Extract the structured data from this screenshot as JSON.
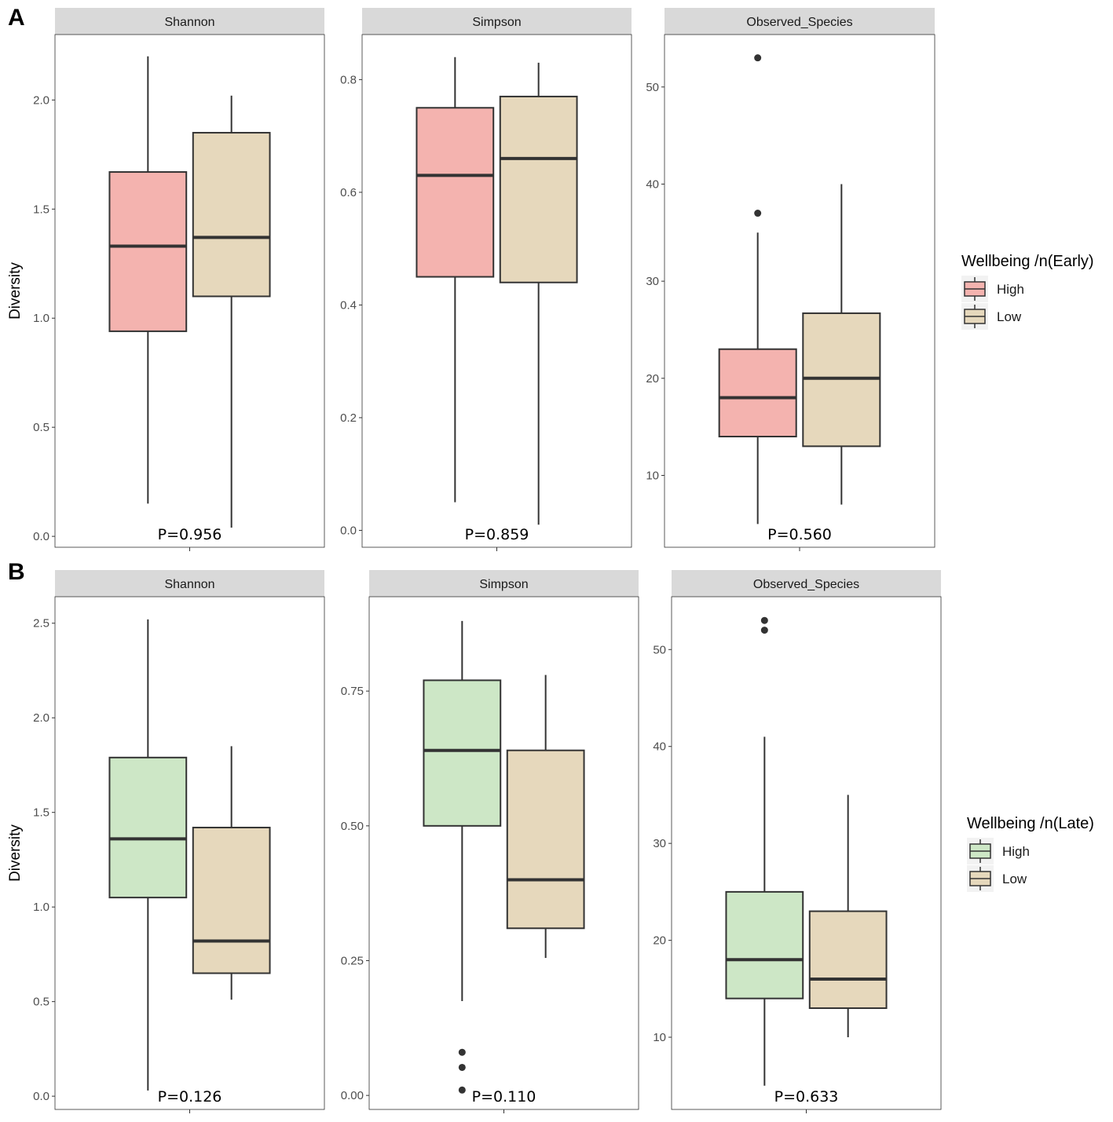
{
  "chart_data": [
    {
      "type": "boxplot",
      "panel": "A",
      "ylabel": "Diversity",
      "legend": {
        "title": "Wellbeing /n(Early)",
        "position": "right",
        "entries": [
          {
            "label": "High",
            "color": "#F4B3AF"
          },
          {
            "label": "Low",
            "color": "#E6D8BC"
          }
        ]
      },
      "facets": [
        {
          "title": "Shannon",
          "ylim": [
            -0.05,
            2.3
          ],
          "ticks": [
            0.0,
            0.5,
            1.0,
            1.5,
            2.0
          ],
          "tick_labels": [
            "0.0",
            "0.5",
            "1.0",
            "1.5",
            "2.0"
          ],
          "pvalue": "P=0.956",
          "series": [
            {
              "name": "High",
              "min": 0.15,
              "q1": 0.94,
              "median": 1.33,
              "q3": 1.67,
              "max": 2.2,
              "outliers": []
            },
            {
              "name": "Low",
              "min": 0.04,
              "q1": 1.1,
              "median": 1.37,
              "q3": 1.85,
              "max": 2.02,
              "outliers": []
            }
          ]
        },
        {
          "title": "Simpson",
          "ylim": [
            -0.03,
            0.88
          ],
          "ticks": [
            0.0,
            0.2,
            0.4,
            0.6,
            0.8
          ],
          "tick_labels": [
            "0.0",
            "0.2",
            "0.4",
            "0.6",
            "0.8"
          ],
          "pvalue": "P=0.859",
          "series": [
            {
              "name": "High",
              "min": 0.05,
              "q1": 0.45,
              "median": 0.63,
              "q3": 0.75,
              "max": 0.84,
              "outliers": []
            },
            {
              "name": "Low",
              "min": 0.01,
              "q1": 0.44,
              "median": 0.66,
              "q3": 0.77,
              "max": 0.83,
              "outliers": []
            }
          ]
        },
        {
          "title": "Observed_Species",
          "ylim": [
            2.6,
            55.4
          ],
          "ticks": [
            10,
            20,
            30,
            40,
            50
          ],
          "tick_labels": [
            "10",
            "20",
            "30",
            "40",
            "50"
          ],
          "pvalue": "P=0.560",
          "series": [
            {
              "name": "High",
              "min": 5,
              "q1": 14,
              "median": 18,
              "q3": 23,
              "max": 35,
              "outliers": [
                37,
                53
              ]
            },
            {
              "name": "Low",
              "min": 7,
              "q1": 13,
              "median": 20,
              "q3": 26.7,
              "max": 40,
              "outliers": []
            }
          ]
        }
      ]
    },
    {
      "type": "boxplot",
      "panel": "B",
      "ylabel": "Diversity",
      "legend": {
        "title": "Wellbeing /n(Late)",
        "position": "right",
        "entries": [
          {
            "label": "High",
            "color": "#CDE7C6"
          },
          {
            "label": "Low",
            "color": "#E6D8BC"
          }
        ]
      },
      "facets": [
        {
          "title": "Shannon",
          "ylim": [
            -0.07,
            2.64
          ],
          "ticks": [
            0.0,
            0.5,
            1.0,
            1.5,
            2.0,
            2.5
          ],
          "tick_labels": [
            "0.0",
            "0.5",
            "1.0",
            "1.5",
            "2.0",
            "2.5"
          ],
          "pvalue": "P=0.126",
          "series": [
            {
              "name": "High",
              "min": 0.03,
              "q1": 1.05,
              "median": 1.36,
              "q3": 1.79,
              "max": 2.52,
              "outliers": []
            },
            {
              "name": "Low",
              "min": 0.51,
              "q1": 0.65,
              "median": 0.82,
              "q3": 1.42,
              "max": 1.85,
              "outliers": []
            }
          ]
        },
        {
          "title": "Simpson",
          "ylim": [
            -0.026,
            0.925
          ],
          "ticks": [
            0.0,
            0.25,
            0.5,
            0.75
          ],
          "tick_labels": [
            "0.00",
            "0.25",
            "0.50",
            "0.75"
          ],
          "pvalue": "P=0.110",
          "series": [
            {
              "name": "High",
              "min": 0.175,
              "q1": 0.5,
              "median": 0.64,
              "q3": 0.77,
              "max": 0.88,
              "outliers": [
                0.01,
                0.052,
                0.08
              ]
            },
            {
              "name": "Low",
              "min": 0.255,
              "q1": 0.31,
              "median": 0.4,
              "q3": 0.64,
              "max": 0.78,
              "outliers": []
            }
          ]
        },
        {
          "title": "Observed_Species",
          "ylim": [
            2.55,
            55.45
          ],
          "ticks": [
            10,
            20,
            30,
            40,
            50
          ],
          "tick_labels": [
            "10",
            "20",
            "30",
            "40",
            "50"
          ],
          "pvalue": "P=0.633",
          "series": [
            {
              "name": "High",
              "min": 5,
              "q1": 14,
              "median": 18,
              "q3": 25,
              "max": 41,
              "outliers": [
                52,
                53
              ]
            },
            {
              "name": "Low",
              "min": 10,
              "q1": 13,
              "median": 16,
              "q3": 23,
              "max": 35,
              "outliers": []
            }
          ]
        }
      ]
    }
  ]
}
